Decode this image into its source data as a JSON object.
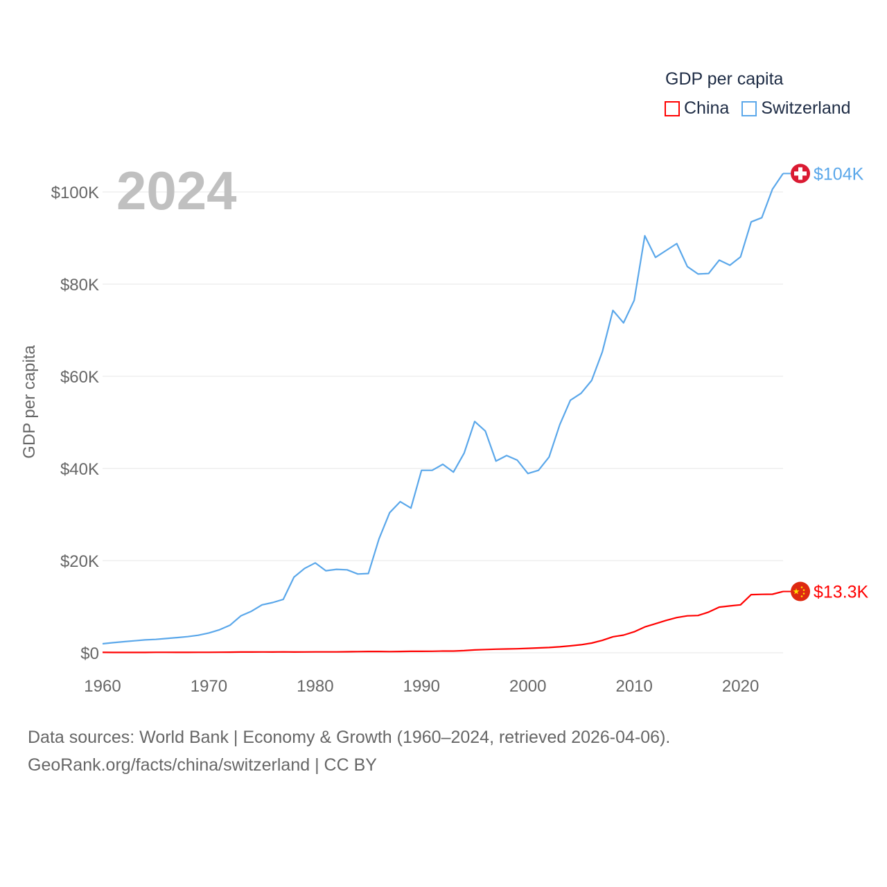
{
  "legend": {
    "title": "GDP per capita"
  },
  "year_label": "2024",
  "footer": {
    "line1": "Data sources: World Bank | Economy & Growth (1960–2024, retrieved 2026-04-06).",
    "line2": "GeoRank.org/facts/china/switzerland | CC BY"
  },
  "chart_data": {
    "type": "line",
    "title": "GDP per capita",
    "xlabel": "",
    "ylabel": "GDP per capita",
    "xlim": [
      1960,
      2024
    ],
    "ylim": [
      0,
      104
    ],
    "y_unit": "thousand USD",
    "yticks": [
      0,
      20,
      40,
      60,
      80,
      100
    ],
    "ytick_labels": [
      "$0",
      "$20K",
      "$40K",
      "$60K",
      "$80K",
      "$100K"
    ],
    "xticks": [
      1960,
      1970,
      1980,
      1990,
      2000,
      2010,
      2020
    ],
    "xtick_labels": [
      "1960",
      "1970",
      "1980",
      "1990",
      "2000",
      "2010",
      "2020"
    ],
    "grid": true,
    "legend_position": "top-right",
    "x_start": 1960,
    "series": [
      {
        "name": "China",
        "color": "#ff0000",
        "end_label": "$13.3K",
        "flag": "china-flag",
        "values": [
          0.09,
          0.08,
          0.07,
          0.07,
          0.08,
          0.1,
          0.1,
          0.09,
          0.09,
          0.1,
          0.11,
          0.12,
          0.13,
          0.16,
          0.16,
          0.18,
          0.17,
          0.19,
          0.16,
          0.18,
          0.19,
          0.2,
          0.2,
          0.22,
          0.25,
          0.29,
          0.28,
          0.25,
          0.28,
          0.31,
          0.32,
          0.33,
          0.37,
          0.38,
          0.47,
          0.61,
          0.71,
          0.78,
          0.83,
          0.87,
          0.96,
          1.05,
          1.15,
          1.29,
          1.51,
          1.75,
          2.1,
          2.69,
          3.47,
          3.83,
          4.55,
          5.61,
          6.3,
          7.02,
          7.64,
          8.02,
          8.09,
          8.82,
          9.91,
          10.16,
          10.41,
          12.62,
          12.67,
          12.71,
          13.3
        ]
      },
      {
        "name": "Switzerland",
        "color": "#5aa7ea",
        "end_label": "$104K",
        "flag": "switzerland-flag",
        "values": [
          1.95,
          2.2,
          2.4,
          2.6,
          2.8,
          2.9,
          3.1,
          3.3,
          3.5,
          3.8,
          4.3,
          5.0,
          6.0,
          8.0,
          9.0,
          10.4,
          10.9,
          11.6,
          16.4,
          18.3,
          19.5,
          17.8,
          18.1,
          18.0,
          17.1,
          17.2,
          24.7,
          30.4,
          32.8,
          31.4,
          39.6,
          39.6,
          40.9,
          39.2,
          43.3,
          50.2,
          48.1,
          41.6,
          42.8,
          41.8,
          38.9,
          39.6,
          42.5,
          49.5,
          54.8,
          56.3,
          59.1,
          65.3,
          74.3,
          71.6,
          76.5,
          90.5,
          85.8,
          87.3,
          88.8,
          83.8,
          82.2,
          82.3,
          85.2,
          84.1,
          85.9,
          93.5,
          94.4,
          100.6,
          104.0
        ]
      }
    ]
  }
}
